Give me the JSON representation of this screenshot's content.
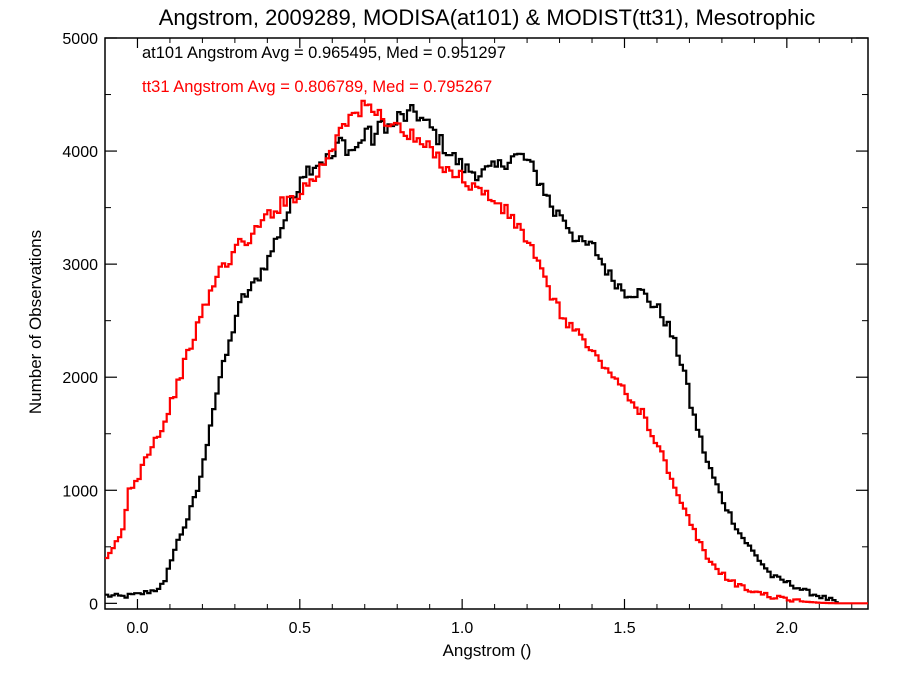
{
  "chart_data": {
    "type": "line",
    "title": "Angstrom, 2009289, MODISA(at101) & MODIST(tt31), Mesotrophic",
    "xlabel": "Angstrom ()",
    "ylabel": "Number of Observations",
    "xlim": [
      -0.1,
      2.25
    ],
    "ylim": [
      -50,
      5000
    ],
    "xticks": [
      0.0,
      0.5,
      1.0,
      1.5,
      2.0
    ],
    "xtick_labels": [
      "0.0",
      "0.5",
      "1.0",
      "1.5",
      "2.0"
    ],
    "yticks": [
      0,
      1000,
      2000,
      3000,
      4000,
      5000
    ],
    "ytick_labels": [
      "0",
      "1000",
      "2000",
      "3000",
      "4000",
      "5000"
    ],
    "grid": false,
    "annotations": [
      {
        "text": "at101 Angstrom Avg = 0.965495, Med = 0.951297",
        "color": "#000000"
      },
      {
        "text": "tt31 Angstrom Avg = 0.806789, Med = 0.795267",
        "color": "#ff0000"
      }
    ],
    "series": [
      {
        "color": "#000000",
        "step": true,
        "x": [
          -0.1,
          -0.05,
          0.0,
          0.05,
          0.08,
          0.1,
          0.12,
          0.15,
          0.18,
          0.2,
          0.22,
          0.25,
          0.28,
          0.3,
          0.32,
          0.35,
          0.38,
          0.4,
          0.42,
          0.45,
          0.48,
          0.5,
          0.55,
          0.6,
          0.62,
          0.65,
          0.68,
          0.7,
          0.72,
          0.75,
          0.78,
          0.8,
          0.82,
          0.85,
          0.88,
          0.9,
          0.95,
          1.0,
          1.05,
          1.1,
          1.15,
          1.18,
          1.2,
          1.22,
          1.25,
          1.28,
          1.3,
          1.32,
          1.35,
          1.4,
          1.42,
          1.45,
          1.5,
          1.55,
          1.58,
          1.6,
          1.63,
          1.65,
          1.68,
          1.7,
          1.72,
          1.75,
          1.8,
          1.85,
          1.9,
          1.95,
          2.0,
          2.05,
          2.1,
          2.15
        ],
        "y": [
          70,
          60,
          80,
          120,
          180,
          400,
          550,
          750,
          1000,
          1250,
          1600,
          2000,
          2300,
          2550,
          2700,
          2800,
          2950,
          3050,
          3200,
          3400,
          3600,
          3800,
          3900,
          3950,
          4100,
          4000,
          4050,
          4200,
          4100,
          4250,
          4200,
          4300,
          4300,
          4350,
          4250,
          4200,
          4000,
          3850,
          3800,
          3850,
          3950,
          3950,
          3900,
          3800,
          3650,
          3450,
          3450,
          3350,
          3200,
          3150,
          3050,
          2900,
          2750,
          2750,
          2650,
          2600,
          2450,
          2300,
          2050,
          1750,
          1550,
          1250,
          900,
          620,
          420,
          240,
          180,
          110,
          60,
          10
        ]
      },
      {
        "color": "#ff0000",
        "step": true,
        "x": [
          -0.1,
          -0.08,
          -0.05,
          -0.03,
          0.0,
          0.02,
          0.05,
          0.08,
          0.1,
          0.12,
          0.15,
          0.18,
          0.2,
          0.22,
          0.25,
          0.28,
          0.3,
          0.35,
          0.4,
          0.45,
          0.5,
          0.55,
          0.6,
          0.62,
          0.65,
          0.68,
          0.7,
          0.72,
          0.75,
          0.78,
          0.8,
          0.85,
          0.9,
          0.95,
          1.0,
          1.05,
          1.1,
          1.15,
          1.2,
          1.25,
          1.3,
          1.35,
          1.4,
          1.45,
          1.5,
          1.52,
          1.55,
          1.58,
          1.6,
          1.62,
          1.65,
          1.7,
          1.75,
          1.8,
          1.85,
          1.9,
          1.95,
          2.0,
          2.05,
          2.1,
          2.15,
          2.2
        ],
        "y": [
          380,
          480,
          650,
          1000,
          1130,
          1300,
          1450,
          1600,
          1780,
          1950,
          2200,
          2450,
          2600,
          2750,
          2950,
          3050,
          3150,
          3250,
          3450,
          3550,
          3650,
          3800,
          4050,
          4250,
          4300,
          4350,
          4400,
          4350,
          4300,
          4250,
          4200,
          4100,
          4000,
          3850,
          3750,
          3650,
          3550,
          3400,
          3200,
          2850,
          2550,
          2400,
          2200,
          2050,
          1850,
          1750,
          1700,
          1500,
          1400,
          1250,
          1000,
          700,
          400,
          250,
          150,
          100,
          60,
          30,
          15,
          5,
          0,
          0
        ]
      }
    ]
  }
}
